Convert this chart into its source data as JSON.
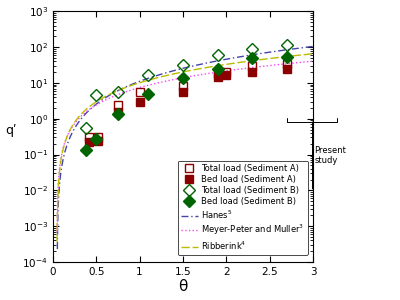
{
  "title": "",
  "xlabel": "θ",
  "ylabel": "qʹ",
  "xlim": [
    0,
    3
  ],
  "ylim_log": [
    -4,
    3
  ],
  "xticks": [
    0,
    0.5,
    1.0,
    1.5,
    2.0,
    2.5,
    3.0
  ],
  "xticklabels": [
    "0",
    "0.5",
    "1",
    "1.5",
    "2",
    "2.5",
    "3"
  ],
  "sedA_total_theta": [
    0.42,
    0.52,
    0.75,
    1.0,
    1.5,
    1.9,
    2.0,
    2.3,
    2.7
  ],
  "sedA_total_q": [
    0.3,
    0.3,
    2.5,
    5.5,
    8.0,
    18.0,
    20.0,
    30.0,
    35.0
  ],
  "sedA_bed_theta": [
    0.42,
    0.52,
    0.75,
    1.0,
    1.5,
    1.9,
    2.0,
    2.3,
    2.7
  ],
  "sedA_bed_q": [
    0.23,
    0.24,
    1.5,
    3.0,
    5.5,
    15.0,
    17.0,
    20.0,
    25.0
  ],
  "sedB_total_theta": [
    0.38,
    0.5,
    0.75,
    1.1,
    1.5,
    1.9,
    2.3,
    2.7
  ],
  "sedB_total_q": [
    0.55,
    4.5,
    5.5,
    17.0,
    32.0,
    60.0,
    90.0,
    115.0
  ],
  "sedB_bed_theta": [
    0.38,
    0.5,
    0.75,
    1.1,
    1.5,
    1.9,
    2.3,
    2.7
  ],
  "sedB_bed_q": [
    0.13,
    0.27,
    1.4,
    5.0,
    14.0,
    25.0,
    50.0,
    55.0
  ],
  "color_sedA": "#8B0000",
  "color_sedB": "#006400",
  "color_hanes": "#4444AA",
  "color_mpm": "#FF44FF",
  "color_ribberink": "#BBBB00",
  "hanes_theta_cr": 0.05,
  "hanes_coeff": 12.0,
  "hanes_exp1": 1.5,
  "hanes_exp2": 0.5,
  "mpm_theta_cr": 0.047,
  "mpm_coeff": 8.0,
  "mpm_exp": 1.5,
  "rib_theta_cr": 0.047,
  "rib_coeff": 11.0,
  "rib_exp": 1.65
}
